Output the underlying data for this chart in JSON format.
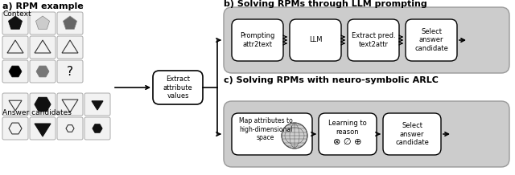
{
  "title_a": "a) RPM example",
  "title_b": "b) Solving RPMs through LLM prompting",
  "title_c": "c) Solving RPMs with neuro-symbolic ARLC",
  "bg_color": "#ffffff",
  "label_context": "Context",
  "label_answer": "Answer candidates",
  "box_extract": "Extract\nattribute\nvalues",
  "llm_boxes_b": [
    "Prompting\nattr2text",
    "LLM",
    "Extract pred.\ntext2attr",
    "Select\nanswer\ncandidate"
  ],
  "font_size_title": 7.5,
  "font_size_label": 6.5,
  "font_size_box": 6.2,
  "outer_gray": "#cccccc",
  "inner_white": "#ffffff",
  "cell_gray": "#f2f2f2",
  "cell_border": "#aaaaaa"
}
